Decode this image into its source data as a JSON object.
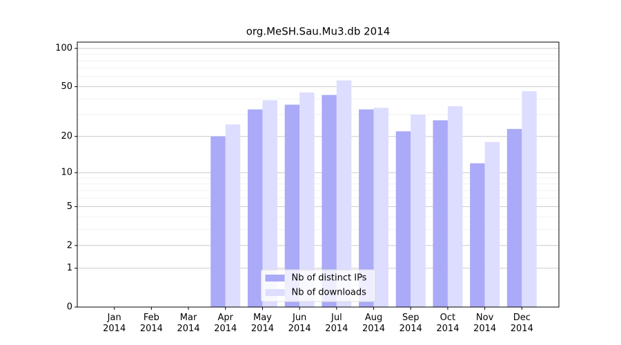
{
  "chart_data": {
    "type": "bar",
    "title": "org.MeSH.Sau.Mu3.db 2014",
    "categories": [
      "Jan\n2014",
      "Feb\n2014",
      "Mar\n2014",
      "Apr\n2014",
      "May\n2014",
      "Jun\n2014",
      "Jul\n2014",
      "Aug\n2014",
      "Sep\n2014",
      "Oct\n2014",
      "Nov\n2014",
      "Dec\n2014"
    ],
    "series": [
      {
        "name": "Nb of distinct IPs",
        "color": "#aaaaf8",
        "values": [
          0,
          0,
          0,
          20,
          33,
          36,
          43,
          33,
          22,
          27,
          12,
          23
        ]
      },
      {
        "name": "Nb of downloads",
        "color": "#ddddff",
        "values": [
          0,
          0,
          0,
          25,
          39,
          45,
          56,
          34,
          30,
          35,
          18,
          46
        ]
      }
    ],
    "yscale": "log1p",
    "ylim": [
      0,
      112
    ],
    "yticks": [
      0,
      1,
      2,
      5,
      10,
      20,
      50,
      100
    ],
    "yminor": [
      3,
      4,
      6,
      7,
      8,
      9,
      30,
      40,
      60,
      70,
      80,
      90
    ],
    "grid": true,
    "legend": "lower center"
  }
}
